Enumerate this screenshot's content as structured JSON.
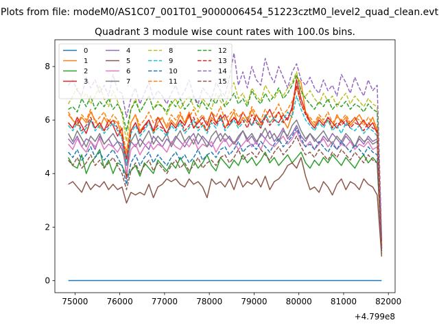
{
  "figure": {
    "suptitle": "Plots from file: modeM0/AS1C07_001T01_9000006454_51223cztM0_level2_quad_clean.evt"
  },
  "chart_data": {
    "type": "line",
    "title": "Quadrant 3 module wise count rates with 100.0s bins.",
    "xlabel": "",
    "ylabel": "",
    "x_offset": 479900000,
    "x_offset_label": "+4.799e8",
    "xlim": [
      74550,
      82150
    ],
    "ylim": [
      -0.45,
      9.0
    ],
    "xticks": [
      75000,
      76000,
      77000,
      78000,
      79000,
      80000,
      81000,
      82000
    ],
    "yticks": [
      0,
      2,
      4,
      6,
      8
    ],
    "grid": false,
    "legend_position": "top-left",
    "legend_columns": 4,
    "x_start": 74850,
    "x_step": 100,
    "series": [
      {
        "name": "0",
        "color": "#1f77b4",
        "dashed": false,
        "values": [
          0.0,
          0.0,
          0.0,
          0.0,
          0.0,
          0.0,
          0.0,
          0.0,
          0.0,
          0.0,
          0.0,
          0.0,
          0.0,
          0.0,
          0.0,
          0.0,
          0.0,
          0.0,
          0.0,
          0.0,
          0.0,
          0.0,
          0.0,
          0.0,
          0.0,
          0.0,
          0.0,
          0.0,
          0.0,
          0.0,
          0.0,
          0.0,
          0.0,
          0.0,
          0.0,
          0.0,
          0.0,
          0.0,
          0.0,
          0.0,
          0.0,
          0.0,
          0.0,
          0.0,
          0.0,
          0.0,
          0.0,
          0.0,
          0.0,
          0.0,
          0.0,
          0.0,
          0.0,
          0.0,
          0.0,
          0.0,
          0.0,
          0.0,
          0.0,
          0.0,
          0.0,
          0.0,
          0.0,
          0.0,
          0.0,
          0.0,
          0.0,
          0.0,
          0.0,
          0.0,
          0.0
        ]
      },
      {
        "name": "1",
        "color": "#ff7f0e",
        "dashed": false,
        "values": [
          6.2,
          6.0,
          5.8,
          6.1,
          5.9,
          6.3,
          6.0,
          5.7,
          6.1,
          5.8,
          6.0,
          5.9,
          5.4,
          4.6,
          5.9,
          6.2,
          5.6,
          5.8,
          6.0,
          5.5,
          5.9,
          6.1,
          5.7,
          6.0,
          5.8,
          6.2,
          5.9,
          6.3,
          5.7,
          6.0,
          5.8,
          5.6,
          6.1,
          5.9,
          6.2,
          5.7,
          6.0,
          6.3,
          5.8,
          6.1,
          5.9,
          6.4,
          6.0,
          5.8,
          6.2,
          5.9,
          6.1,
          6.3,
          6.0,
          5.7,
          6.2,
          7.6,
          7.4,
          6.3,
          6.0,
          5.8,
          6.1,
          5.9,
          6.0,
          5.7,
          6.2,
          5.9,
          6.1,
          5.8,
          6.0,
          6.2,
          5.9,
          5.8,
          6.1,
          5.6,
          1.3
        ]
      },
      {
        "name": "2",
        "color": "#2ca02c",
        "dashed": false,
        "values": [
          4.6,
          4.3,
          4.2,
          4.7,
          4.0,
          4.4,
          4.6,
          4.9,
          4.2,
          4.5,
          4.0,
          4.4,
          4.3,
          3.9,
          4.1,
          4.3,
          3.9,
          4.4,
          4.2,
          4.0,
          4.5,
          4.3,
          4.1,
          4.4,
          4.2,
          4.6,
          4.3,
          4.0,
          4.5,
          4.2,
          4.4,
          4.7,
          4.3,
          4.1,
          4.6,
          4.4,
          4.2,
          4.5,
          4.3,
          4.7,
          4.4,
          4.6,
          4.3,
          4.5,
          4.8,
          4.4,
          4.6,
          4.3,
          4.5,
          4.7,
          4.4,
          4.6,
          4.8,
          4.4,
          4.2,
          4.5,
          4.3,
          4.6,
          4.4,
          4.7,
          4.5,
          4.3,
          4.6,
          4.4,
          4.2,
          4.5,
          4.7,
          4.4,
          4.6,
          4.4,
          1.1
        ]
      },
      {
        "name": "3",
        "color": "#d62728",
        "dashed": false,
        "values": [
          5.9,
          5.7,
          6.1,
          5.8,
          5.5,
          6.0,
          5.7,
          5.9,
          5.6,
          6.0,
          5.8,
          5.4,
          5.7,
          3.8,
          5.6,
          5.9,
          5.5,
          5.8,
          6.0,
          5.6,
          6.1,
          5.8,
          5.5,
          5.9,
          5.7,
          6.0,
          5.8,
          6.2,
          5.7,
          5.9,
          6.1,
          5.8,
          6.3,
          5.9,
          6.0,
          6.2,
          5.8,
          6.1,
          5.9,
          6.3,
          6.0,
          5.8,
          6.2,
          5.9,
          6.1,
          6.4,
          6.0,
          5.9,
          6.2,
          6.0,
          6.5,
          7.5,
          6.8,
          6.3,
          5.9,
          5.7,
          6.0,
          5.8,
          6.1,
          5.9,
          5.7,
          6.0,
          5.8,
          5.9,
          6.1,
          5.8,
          6.0,
          5.7,
          5.9,
          5.5,
          1.2
        ]
      },
      {
        "name": "4",
        "color": "#9467bd",
        "dashed": false,
        "values": [
          5.3,
          5.1,
          5.4,
          5.0,
          5.3,
          5.2,
          4.9,
          5.4,
          5.1,
          5.3,
          5.0,
          5.2,
          5.1,
          4.6,
          5.2,
          5.0,
          5.3,
          5.1,
          4.9,
          5.4,
          5.2,
          5.0,
          5.3,
          5.1,
          5.4,
          5.2,
          5.0,
          5.3,
          5.5,
          5.1,
          5.4,
          5.2,
          5.0,
          5.3,
          5.5,
          5.2,
          5.4,
          5.1,
          5.3,
          5.6,
          5.2,
          5.4,
          5.1,
          5.5,
          5.3,
          5.6,
          5.2,
          5.4,
          5.7,
          5.3,
          5.5,
          5.8,
          5.4,
          5.2,
          5.5,
          5.3,
          5.1,
          5.4,
          5.2,
          5.5,
          5.3,
          5.1,
          5.4,
          5.2,
          5.0,
          5.3,
          5.1,
          5.4,
          5.2,
          5.3,
          1.2
        ]
      },
      {
        "name": "5",
        "color": "#8c564b",
        "dashed": false,
        "values": [
          3.6,
          3.7,
          3.5,
          3.3,
          3.7,
          3.4,
          3.6,
          3.5,
          3.7,
          3.4,
          3.6,
          3.4,
          3.5,
          2.9,
          3.3,
          3.2,
          3.3,
          3.2,
          3.6,
          3.1,
          3.5,
          3.6,
          3.8,
          3.7,
          3.8,
          3.6,
          3.5,
          3.8,
          3.6,
          3.7,
          3.5,
          3.1,
          3.8,
          3.6,
          3.7,
          3.5,
          3.8,
          3.4,
          3.9,
          3.5,
          3.7,
          3.6,
          3.8,
          3.5,
          3.9,
          3.4,
          3.7,
          3.8,
          4.0,
          4.3,
          4.4,
          4.2,
          4.6,
          3.9,
          3.4,
          3.5,
          3.3,
          3.7,
          3.5,
          3.2,
          3.6,
          3.8,
          3.4,
          3.7,
          3.6,
          3.4,
          3.8,
          3.6,
          3.5,
          3.2,
          0.9
        ]
      },
      {
        "name": "6",
        "color": "#e377c2",
        "dashed": false,
        "values": [
          5.1,
          4.9,
          5.3,
          5.0,
          4.8,
          5.2,
          5.0,
          5.3,
          4.9,
          5.1,
          5.0,
          4.8,
          5.1,
          4.0,
          4.9,
          5.1,
          4.7,
          5.0,
          5.2,
          4.9,
          5.1,
          5.0,
          4.8,
          5.2,
          5.0,
          4.9,
          5.2,
          5.0,
          5.3,
          4.9,
          5.1,
          5.0,
          5.2,
          4.8,
          5.1,
          5.3,
          5.0,
          5.2,
          4.9,
          5.1,
          5.3,
          5.0,
          5.2,
          4.9,
          5.3,
          5.1,
          5.0,
          5.2,
          5.4,
          5.1,
          5.3,
          5.6,
          5.2,
          5.0,
          5.2,
          4.9,
          5.1,
          5.3,
          5.0,
          5.2,
          4.9,
          5.1,
          5.0,
          5.2,
          4.9,
          5.1,
          5.0,
          5.2,
          4.9,
          5.0,
          1.2
        ]
      },
      {
        "name": "7",
        "color": "#7f7f7f",
        "dashed": false,
        "values": [
          5.5,
          5.2,
          5.6,
          5.3,
          5.0,
          5.4,
          5.2,
          5.5,
          5.1,
          5.3,
          5.5,
          5.2,
          4.9,
          4.3,
          5.2,
          5.5,
          5.0,
          5.3,
          5.6,
          5.1,
          5.4,
          5.2,
          5.5,
          5.0,
          5.3,
          5.6,
          5.2,
          5.4,
          5.1,
          5.5,
          5.3,
          5.0,
          5.4,
          5.6,
          5.2,
          5.5,
          5.3,
          5.1,
          5.4,
          5.6,
          5.3,
          5.5,
          5.2,
          5.4,
          5.7,
          5.3,
          5.5,
          5.2,
          5.6,
          5.4,
          5.8,
          6.0,
          5.6,
          5.3,
          5.5,
          5.2,
          5.4,
          5.6,
          5.3,
          5.1,
          5.4,
          5.2,
          5.5,
          5.3,
          5.0,
          5.4,
          5.2,
          5.3,
          5.1,
          5.2,
          1.2
        ]
      },
      {
        "name": "8",
        "color": "#bcbd22",
        "dashed": true,
        "values": [
          6.6,
          6.9,
          7.2,
          6.8,
          7.0,
          6.6,
          6.9,
          7.3,
          6.8,
          6.5,
          7.1,
          6.7,
          6.2,
          5.2,
          6.4,
          6.8,
          6.3,
          6.6,
          6.9,
          6.4,
          6.7,
          6.5,
          6.2,
          6.6,
          6.8,
          6.4,
          6.7,
          6.9,
          6.5,
          6.3,
          6.8,
          6.6,
          6.4,
          7.0,
          6.7,
          6.5,
          7.1,
          7.4,
          6.8,
          7.0,
          6.6,
          7.2,
          6.9,
          6.7,
          7.3,
          7.0,
          6.8,
          7.1,
          6.9,
          7.2,
          7.4,
          7.8,
          7.0,
          6.9,
          7.1,
          6.8,
          6.6,
          7.0,
          6.7,
          6.9,
          6.5,
          6.8,
          7.0,
          6.6,
          6.9,
          6.7,
          6.5,
          6.8,
          6.6,
          6.5,
          1.4
        ]
      },
      {
        "name": "9",
        "color": "#17becf",
        "dashed": true,
        "values": [
          5.8,
          5.6,
          5.9,
          5.5,
          5.7,
          6.0,
          5.6,
          5.8,
          5.5,
          5.7,
          5.9,
          5.6,
          5.3,
          4.3,
          5.5,
          5.8,
          5.4,
          5.6,
          5.9,
          5.5,
          5.7,
          5.6,
          5.4,
          5.8,
          5.6,
          5.9,
          5.5,
          5.7,
          6.0,
          5.6,
          5.8,
          5.5,
          5.9,
          5.7,
          6.1,
          5.6,
          5.8,
          6.0,
          5.7,
          5.9,
          6.1,
          5.8,
          6.0,
          5.7,
          6.2,
          5.9,
          6.1,
          5.8,
          6.0,
          6.3,
          6.1,
          6.9,
          6.4,
          6.0,
          5.8,
          5.6,
          5.9,
          5.7,
          6.0,
          5.6,
          5.8,
          5.5,
          5.9,
          5.7,
          5.6,
          5.8,
          5.5,
          5.7,
          5.6,
          5.4,
          1.3
        ]
      },
      {
        "name": "10",
        "color": "#1f77b4",
        "dashed": true,
        "values": [
          4.8,
          4.6,
          4.9,
          4.5,
          4.7,
          5.0,
          4.6,
          4.8,
          4.5,
          4.7,
          4.9,
          4.6,
          4.3,
          3.6,
          4.4,
          4.7,
          4.3,
          4.6,
          4.8,
          4.4,
          4.7,
          4.5,
          4.3,
          4.6,
          4.8,
          4.5,
          4.7,
          4.4,
          4.6,
          4.9,
          4.5,
          4.7,
          4.8,
          4.6,
          4.9,
          5.0,
          4.7,
          4.9,
          5.2,
          4.8,
          5.0,
          5.1,
          4.9,
          5.2,
          5.0,
          4.8,
          5.1,
          5.3,
          5.0,
          5.2,
          5.4,
          5.7,
          5.3,
          5.0,
          5.1,
          4.9,
          5.2,
          5.0,
          4.8,
          5.1,
          4.9,
          5.2,
          5.0,
          4.8,
          5.1,
          4.9,
          4.7,
          5.0,
          4.8,
          4.7,
          1.1
        ]
      },
      {
        "name": "11",
        "color": "#ff7f0e",
        "dashed": true,
        "values": [
          6.3,
          6.0,
          5.8,
          6.2,
          6.0,
          6.4,
          5.9,
          6.1,
          6.3,
          5.9,
          6.2,
          6.0,
          5.6,
          4.8,
          5.9,
          6.2,
          5.8,
          6.0,
          6.3,
          5.9,
          6.1,
          6.0,
          5.8,
          6.2,
          6.0,
          6.3,
          5.9,
          6.1,
          6.4,
          6.0,
          6.2,
          5.9,
          6.3,
          6.1,
          6.5,
          6.0,
          6.2,
          6.4,
          6.1,
          6.3,
          6.0,
          6.5,
          6.2,
          6.0,
          6.4,
          6.1,
          6.3,
          6.6,
          6.2,
          6.4,
          6.7,
          7.2,
          6.6,
          6.3,
          6.1,
          5.9,
          6.2,
          6.0,
          6.3,
          5.9,
          6.1,
          6.0,
          6.2,
          5.9,
          6.1,
          6.0,
          5.8,
          6.1,
          5.9,
          5.8,
          1.3
        ]
      },
      {
        "name": "12",
        "color": "#2ca02c",
        "dashed": true,
        "values": [
          6.4,
          6.5,
          6.3,
          6.8,
          6.5,
          6.9,
          6.4,
          6.7,
          6.5,
          6.8,
          6.4,
          6.6,
          6.3,
          5.6,
          6.4,
          6.7,
          6.3,
          6.6,
          6.9,
          6.4,
          6.6,
          6.5,
          6.3,
          6.7,
          6.5,
          6.8,
          6.4,
          6.6,
          6.9,
          6.5,
          6.7,
          6.4,
          6.8,
          6.6,
          7.0,
          6.5,
          6.7,
          7.0,
          6.6,
          6.8,
          6.5,
          7.1,
          6.8,
          6.6,
          7.0,
          6.7,
          6.9,
          7.2,
          6.8,
          7.0,
          7.3,
          7.7,
          7.1,
          6.8,
          6.6,
          6.4,
          6.7,
          6.5,
          6.8,
          6.4,
          6.6,
          6.5,
          6.7,
          6.4,
          6.6,
          6.5,
          6.3,
          6.6,
          6.4,
          6.3,
          1.4
        ]
      },
      {
        "name": "13",
        "color": "#d62728",
        "dashed": true,
        "values": [
          5.9,
          5.7,
          6.0,
          5.6,
          5.8,
          6.1,
          5.7,
          5.9,
          5.6,
          5.8,
          6.0,
          5.7,
          5.4,
          4.5,
          5.6,
          5.9,
          5.5,
          5.7,
          6.0,
          5.6,
          5.8,
          5.7,
          5.5,
          5.9,
          5.7,
          6.0,
          5.6,
          5.8,
          6.1,
          5.7,
          5.9,
          5.6,
          6.0,
          5.8,
          6.2,
          5.7,
          5.9,
          6.1,
          5.8,
          6.0,
          5.7,
          6.2,
          5.9,
          5.7,
          6.1,
          5.8,
          6.0,
          6.3,
          5.9,
          6.1,
          6.4,
          7.3,
          6.6,
          6.2,
          5.9,
          5.7,
          6.0,
          5.8,
          6.1,
          5.7,
          5.9,
          5.8,
          6.0,
          5.7,
          5.9,
          5.8,
          5.6,
          5.9,
          5.7,
          5.6,
          1.3
        ]
      },
      {
        "name": "14",
        "color": "#9467bd",
        "dashed": true,
        "values": [
          7.3,
          7.5,
          7.1,
          6.9,
          7.6,
          7.2,
          7.5,
          7.0,
          7.3,
          6.9,
          7.7,
          7.1,
          7.0,
          6.1,
          6.8,
          7.2,
          6.6,
          7.0,
          7.4,
          6.8,
          7.1,
          6.9,
          6.6,
          7.0,
          7.3,
          6.8,
          7.1,
          7.5,
          6.9,
          6.6,
          7.2,
          7.0,
          6.8,
          7.4,
          7.1,
          6.9,
          7.6,
          8.5,
          7.3,
          7.8,
          7.2,
          8.0,
          7.5,
          7.3,
          8.3,
          7.7,
          7.4,
          8.0,
          7.6,
          7.2,
          7.8,
          8.1,
          7.5,
          7.3,
          7.6,
          7.2,
          7.0,
          7.5,
          7.1,
          7.3,
          6.9,
          7.7,
          7.4,
          7.0,
          7.6,
          7.2,
          6.9,
          7.5,
          7.1,
          7.3,
          1.6
        ]
      },
      {
        "name": "15",
        "color": "#8c564b",
        "dashed": true,
        "values": [
          4.5,
          4.3,
          4.6,
          4.2,
          4.4,
          4.7,
          4.3,
          4.5,
          4.2,
          4.4,
          4.6,
          4.3,
          4.0,
          3.4,
          4.1,
          4.4,
          4.0,
          4.3,
          4.5,
          4.1,
          4.4,
          4.2,
          4.0,
          4.3,
          4.5,
          4.2,
          4.4,
          4.1,
          4.3,
          4.6,
          4.2,
          4.4,
          4.5,
          4.3,
          4.6,
          4.7,
          4.4,
          4.6,
          4.9,
          4.5,
          4.7,
          4.8,
          4.6,
          4.9,
          4.7,
          4.5,
          4.8,
          5.0,
          4.7,
          4.9,
          5.1,
          5.4,
          5.0,
          4.7,
          4.8,
          4.6,
          4.9,
          4.7,
          4.5,
          4.8,
          4.6,
          4.9,
          4.7,
          4.5,
          4.8,
          4.6,
          4.4,
          4.7,
          4.5,
          4.4,
          1.0
        ]
      }
    ]
  }
}
